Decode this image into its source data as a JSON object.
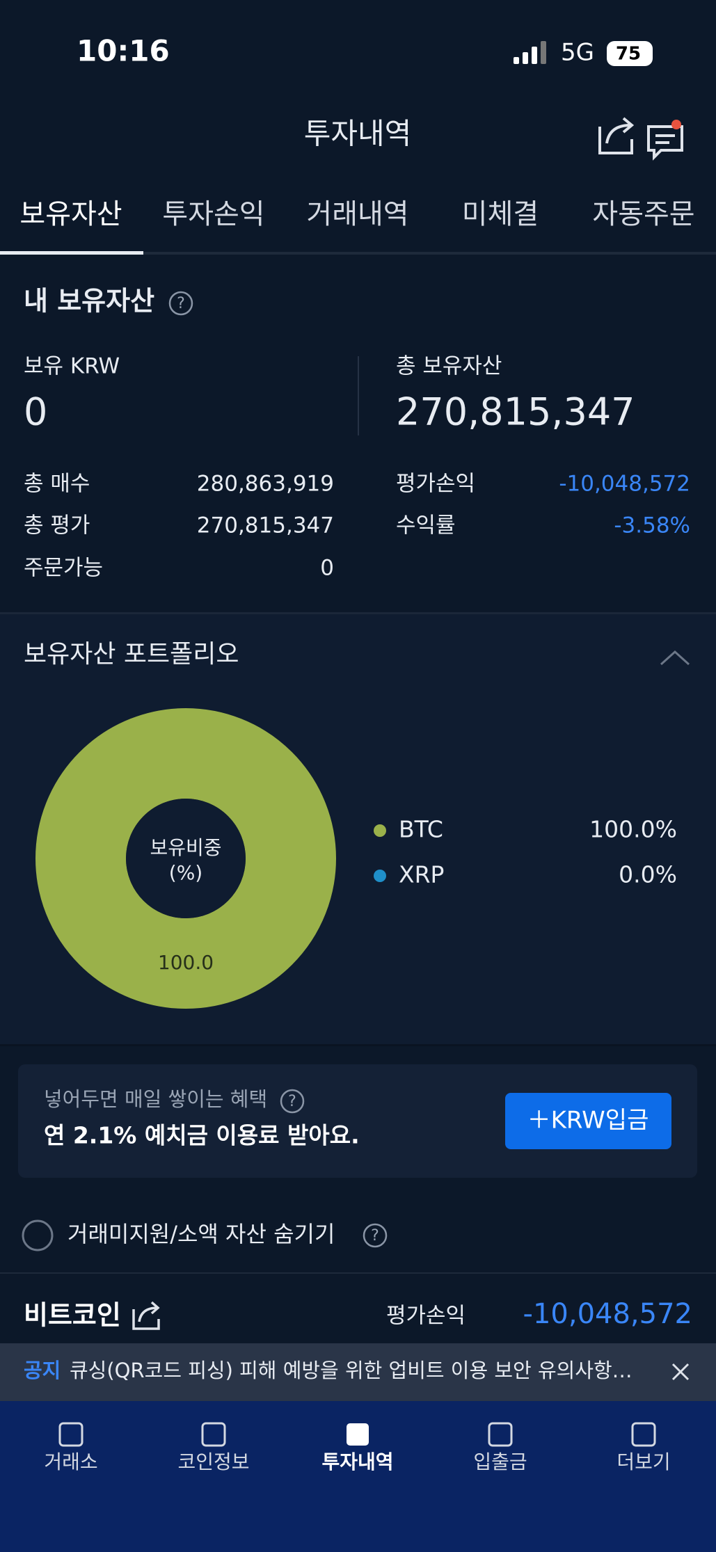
{
  "status_bar": {
    "time": "10:16",
    "network": "5G",
    "battery": "75"
  },
  "header": {
    "title": "투자내역"
  },
  "tabs": [
    "보유자산",
    "투자손익",
    "거래내역",
    "미체결",
    "자동주문"
  ],
  "holdings": {
    "title": "내 보유자산",
    "krw_label": "보유 KRW",
    "krw_value": "0",
    "total_label": "총 보유자산",
    "total_value": "270,815,347",
    "left_rows": [
      {
        "label": "총 매수",
        "value": "280,863,919"
      },
      {
        "label": "총 평가",
        "value": "270,815,347"
      },
      {
        "label": "주문가능",
        "value": "0"
      }
    ],
    "right_rows": [
      {
        "label": "평가손익",
        "value": "-10,048,572"
      },
      {
        "label": "수익률",
        "value": "-3.58%"
      }
    ]
  },
  "portfolio": {
    "title": "보유자산 포트폴리오",
    "chart_data": {
      "type": "pie",
      "center_label": [
        "보유비중",
        "(%)"
      ],
      "series": [
        {
          "name": "BTC",
          "color": "#9ab14a",
          "values": [
            100
          ],
          "value_labels": [
            "100.0%"
          ],
          "slice_labels": [
            "100.0"
          ]
        },
        {
          "name": "XRP",
          "color": "#1f8fc9",
          "values": [
            0
          ],
          "value_labels": [
            "0.0%"
          ]
        }
      ]
    }
  },
  "banner": {
    "subtitle": "넣어두면 매일 쌓이는 혜택",
    "title": "연 2.1% 예치금 이용료 받아요.",
    "button": "＋KRW입금"
  },
  "filter": {
    "label": "거래미지원/소액 자산 숨기기"
  },
  "coin": {
    "name": "비트코인",
    "pl_label": "평가손익",
    "pl_value": "-10,048,572"
  },
  "notice": {
    "tag": "공지",
    "text": "큐싱(QR코드 피싱) 피해 예방을 위한 업비트 이용 보안 유의사항…"
  },
  "nav": [
    "거래소",
    "코인정보",
    "투자내역",
    "입출금",
    "더보기"
  ]
}
